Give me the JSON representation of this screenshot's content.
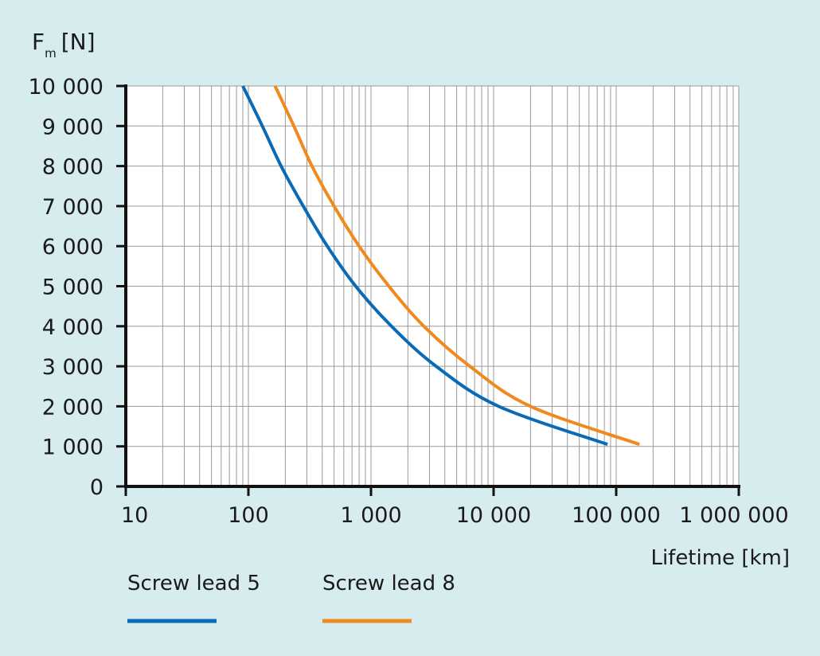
{
  "chart_data": {
    "type": "line",
    "ylabel_main": "F",
    "ylabel_sub": "m",
    "ylabel_unit": "[N]",
    "xlabel": "Lifetime [km]",
    "x_scale": "log",
    "xlim": [
      10,
      1000000
    ],
    "ylim": [
      0,
      10000
    ],
    "x_ticks": [
      10,
      100,
      1000,
      10000,
      100000,
      1000000
    ],
    "x_tick_labels": [
      "10",
      "100",
      "1 000",
      "10 000",
      "100 000",
      "1 000 000"
    ],
    "y_ticks": [
      0,
      1000,
      2000,
      3000,
      4000,
      5000,
      6000,
      7000,
      8000,
      9000,
      10000
    ],
    "y_tick_labels": [
      "0",
      "1 000",
      "2 000",
      "3 000",
      "4 000",
      "5 000",
      "6 000",
      "7 000",
      "8 000",
      "9 000",
      "10 000"
    ],
    "grid": true,
    "legend_position": "bottom-left",
    "series": [
      {
        "name": "Screw lead 5",
        "color": "#0a6ab5",
        "points": [
          [
            90,
            10000
          ],
          [
            130,
            9000
          ],
          [
            185,
            8000
          ],
          [
            280,
            7000
          ],
          [
            440,
            6000
          ],
          [
            750,
            5000
          ],
          [
            1470,
            4000
          ],
          [
            3400,
            3000
          ],
          [
            11000,
            2000
          ],
          [
            85000,
            1050
          ]
        ]
      },
      {
        "name": "Screw lead 8",
        "color": "#f08a1e",
        "points": [
          [
            165,
            10000
          ],
          [
            235,
            9000
          ],
          [
            330,
            8000
          ],
          [
            500,
            7000
          ],
          [
            800,
            6000
          ],
          [
            1400,
            5000
          ],
          [
            2700,
            4000
          ],
          [
            6400,
            3000
          ],
          [
            20000,
            2000
          ],
          [
            155000,
            1050
          ]
        ]
      }
    ]
  }
}
